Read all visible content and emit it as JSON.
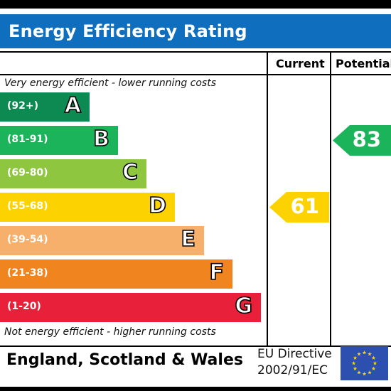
{
  "title": "Energy Efficiency Rating",
  "columns": {
    "current": "Current",
    "potential": "Potential"
  },
  "top_note": "Very energy efficient - lower running costs",
  "bottom_note": "Not energy efficient - higher running costs",
  "colors": {
    "header_blue": "#0f6ebd",
    "A": "#0c8a52",
    "B": "#1cb45a",
    "C": "#8ec63f",
    "D": "#fcd200",
    "E": "#f7af6c",
    "F": "#f0841e",
    "G": "#e8203a",
    "flag_blue": "#2c4fb0",
    "flag_star": "#ffd500"
  },
  "chart_data": {
    "type": "bar",
    "title": "Energy Efficiency Rating",
    "bands": [
      {
        "letter": "A",
        "range": "(92+)"
      },
      {
        "letter": "B",
        "range": "(81-91)"
      },
      {
        "letter": "C",
        "range": "(69-80)"
      },
      {
        "letter": "D",
        "range": "(55-68)"
      },
      {
        "letter": "E",
        "range": "(39-54)"
      },
      {
        "letter": "F",
        "range": "(21-38)"
      },
      {
        "letter": "G",
        "range": "(1-20)"
      }
    ],
    "current": {
      "value": "61",
      "band": "D"
    },
    "potential": {
      "value": "83",
      "band": "B"
    }
  },
  "footer": {
    "region": "England, Scotland & Wales",
    "directive_line1": "EU Directive",
    "directive_line2": "2002/91/EC",
    "flag_icon": "eu-flag-icon"
  }
}
